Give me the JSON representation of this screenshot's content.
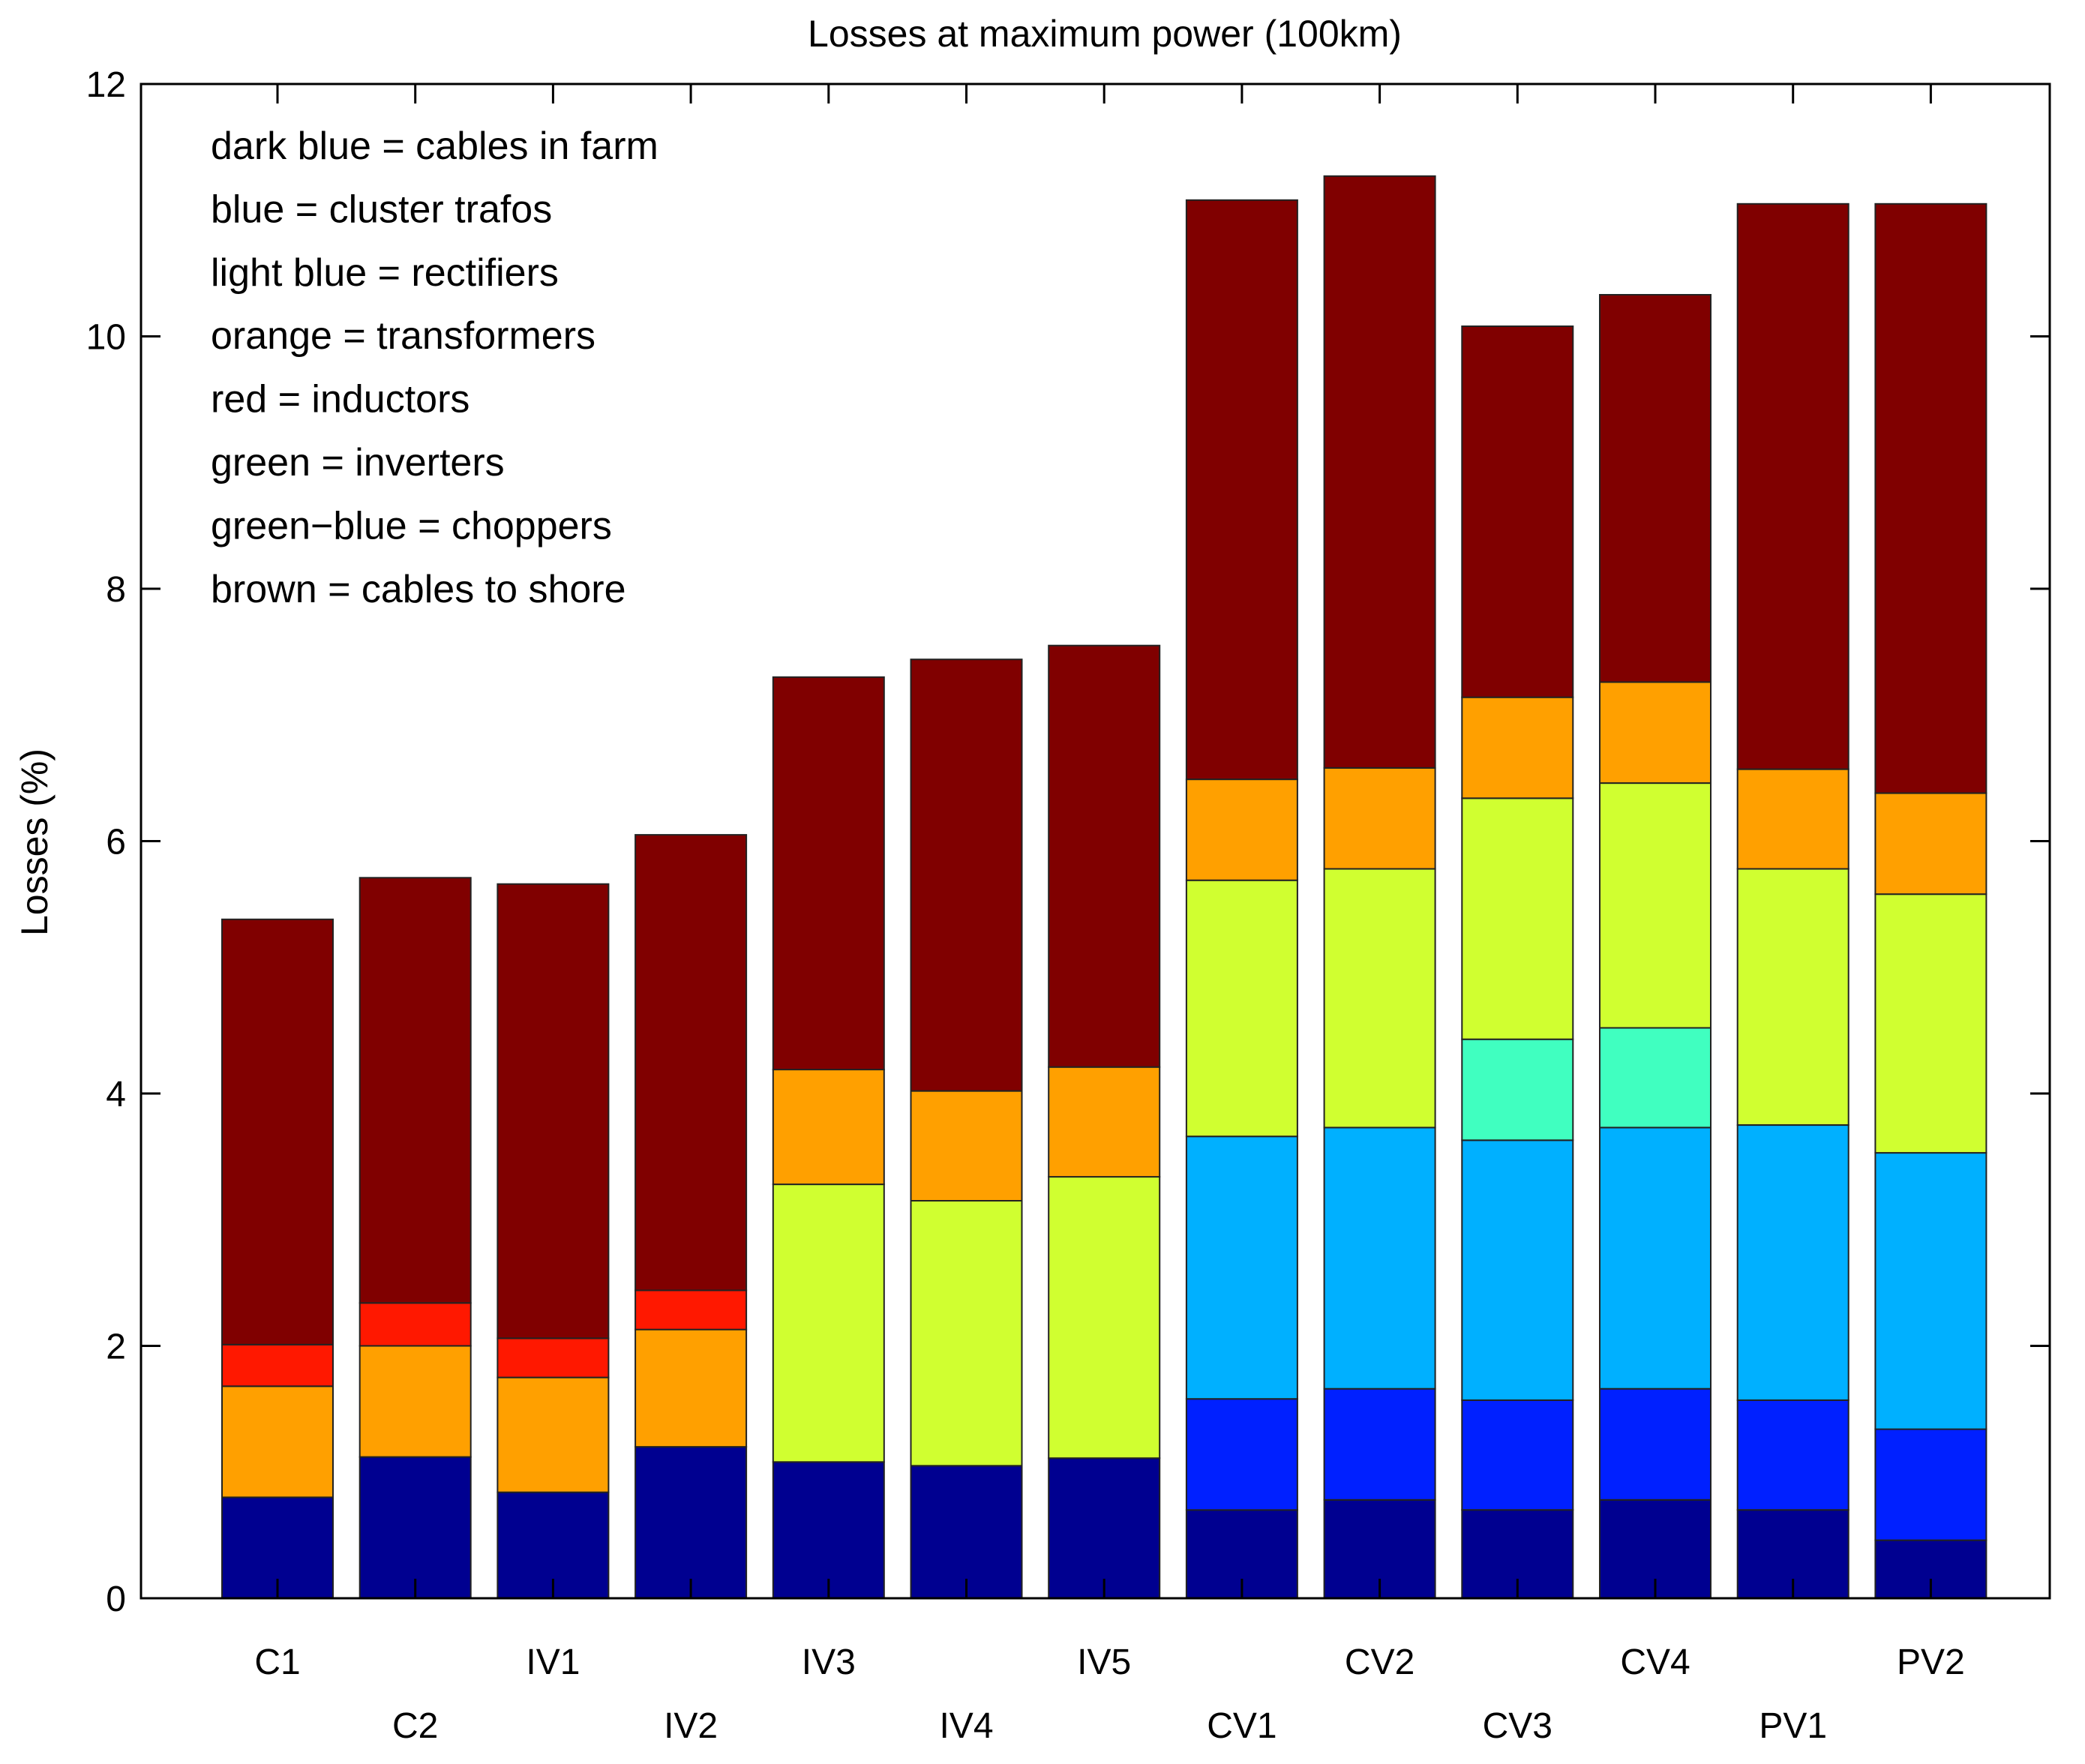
{
  "chart_data": {
    "type": "bar",
    "stacked": true,
    "title": "Losses at maximum power (100km)",
    "xlabel": "",
    "ylabel": "Losses (%)",
    "ylim": [
      0,
      12
    ],
    "yticks": [
      0,
      2,
      4,
      6,
      8,
      10,
      12
    ],
    "grid": false,
    "legend_position": "top-left",
    "categories": [
      "C1",
      "C2",
      "IV1",
      "IV2",
      "IV3",
      "IV4",
      "IV5",
      "CV1",
      "CV2",
      "CV3",
      "CV4",
      "PV1",
      "PV2"
    ],
    "legend_lines": [
      "dark blue = cables in farm",
      "blue = cluster trafos",
      "light blue = rectifiers",
      "orange = transformers",
      "red = inductors",
      "green = inverters",
      "green−blue = choppers",
      "brown = cables to shore"
    ],
    "series": [
      {
        "name": "cables in farm",
        "color": "#000090",
        "values": [
          0.8,
          1.12,
          0.84,
          1.2,
          1.08,
          1.05,
          1.11,
          0.7,
          0.78,
          0.7,
          0.78,
          0.7,
          0.46
        ]
      },
      {
        "name": "cluster trafos",
        "color": "#0020ff",
        "values": [
          0,
          0,
          0,
          0,
          0,
          0,
          0,
          0.88,
          0.88,
          0.87,
          0.88,
          0.87,
          0.88
        ]
      },
      {
        "name": "rectifiers",
        "color": "#00b0ff",
        "values": [
          0,
          0,
          0,
          0,
          0,
          0,
          0,
          2.08,
          2.07,
          2.06,
          2.07,
          2.18,
          2.19
        ]
      },
      {
        "name": "choppers",
        "color": "#40ffc0",
        "values": [
          0,
          0,
          0,
          0,
          0,
          0,
          0,
          0,
          0,
          0.8,
          0.79,
          0,
          0
        ]
      },
      {
        "name": "inverters",
        "color": "#d0ff30",
        "values": [
          0,
          0,
          0,
          0,
          2.2,
          2.1,
          2.23,
          2.03,
          2.05,
          1.91,
          1.94,
          2.03,
          2.05
        ]
      },
      {
        "name": "transformers",
        "color": "#ffa000",
        "values": [
          0.88,
          0.88,
          0.91,
          0.93,
          0.91,
          0.87,
          0.87,
          0.8,
          0.8,
          0.8,
          0.8,
          0.79,
          0.8
        ]
      },
      {
        "name": "inductors",
        "color": "#ff1800",
        "values": [
          0.33,
          0.34,
          0.31,
          0.31,
          0,
          0,
          0,
          0,
          0,
          0,
          0,
          0,
          0
        ]
      },
      {
        "name": "cables to shore",
        "color": "#800000",
        "values": [
          3.37,
          3.37,
          3.6,
          3.61,
          3.11,
          3.42,
          3.34,
          4.59,
          4.69,
          2.94,
          3.07,
          4.48,
          4.67
        ]
      }
    ]
  }
}
